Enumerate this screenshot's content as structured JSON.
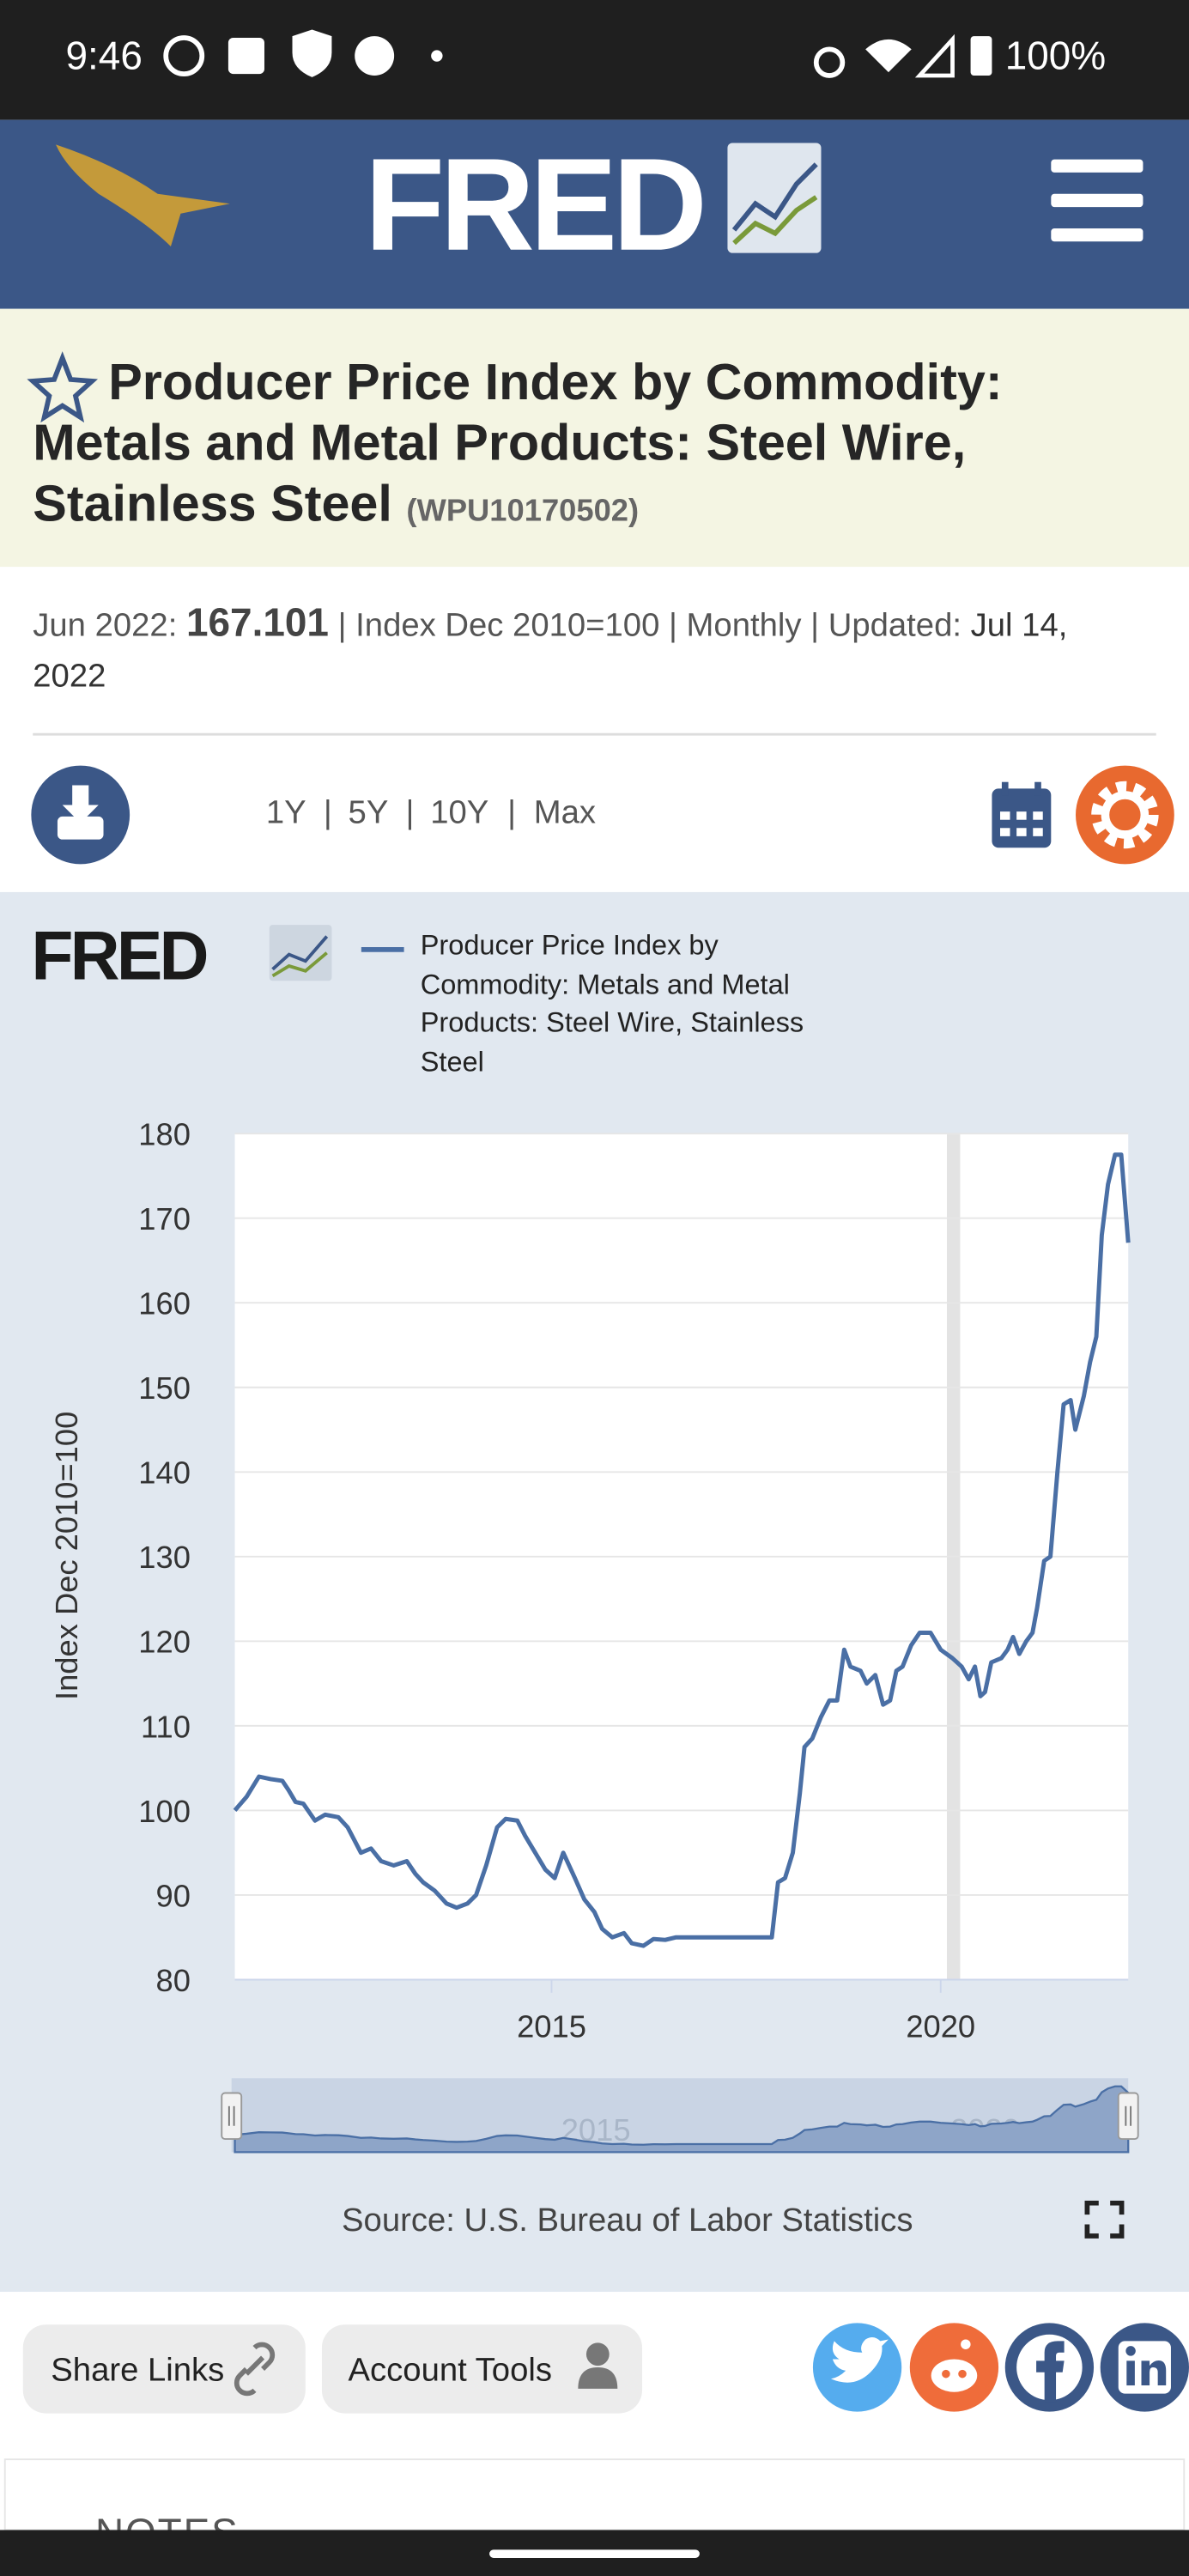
{
  "status_bar": {
    "time": "9:46",
    "battery": "100%"
  },
  "header": {
    "logo": "FRED"
  },
  "title": {
    "lines": [
      "Producer Price Index by Commodity:",
      "Metals and Metal Products: Steel Wire,",
      "Stainless Steel"
    ],
    "series_id": "(WPU10170502)"
  },
  "meta": {
    "date": "Jun 2022:",
    "value": "167.101",
    "details": "| Index Dec 2010=100 | Monthly | Updated:",
    "updated_line1": "Jul 14,",
    "updated_line2": "2022"
  },
  "range_buttons": [
    "1Y",
    "5Y",
    "10Y",
    "Max"
  ],
  "chart_data": {
    "type": "line",
    "logo": "FRED",
    "ylabel": "Index Dec 2010=100",
    "source": "Source: U.S. Bureau of Labor Statistics",
    "x": [
      2010.93,
      2011.08,
      2011.24,
      2011.39,
      2011.54,
      2011.62,
      2011.71,
      2011.81,
      2011.96,
      2012.09,
      2012.26,
      2012.38,
      2012.55,
      2012.68,
      2012.81,
      2012.97,
      2013.14,
      2013.25,
      2013.35,
      2013.5,
      2013.65,
      2013.78,
      2013.92,
      2014.03,
      2014.16,
      2014.3,
      2014.41,
      2014.56,
      2014.66,
      2014.79,
      2014.92,
      2015.04,
      2015.15,
      2015.3,
      2015.42,
      2015.55,
      2015.65,
      2015.78,
      2015.93,
      2016.03,
      2016.18,
      2016.31,
      2016.46,
      2016.6,
      2016.98,
      2017.41,
      2017.83,
      2017.91,
      2018.0,
      2018.1,
      2018.19,
      2018.25,
      2018.35,
      2018.46,
      2018.57,
      2018.67,
      2018.76,
      2018.84,
      2018.97,
      2019.05,
      2019.16,
      2019.26,
      2019.35,
      2019.43,
      2019.51,
      2019.62,
      2019.73,
      2019.87,
      2020.0,
      2020.15,
      2020.27,
      2020.36,
      2020.44,
      2020.51,
      2020.57,
      2020.65,
      2020.78,
      2020.86,
      2020.93,
      2021.01,
      2021.1,
      2021.18,
      2021.24,
      2021.33,
      2021.41,
      2021.5,
      2021.58,
      2021.67,
      2021.73,
      2021.84,
      2021.92,
      2022.0,
      2022.07,
      2022.15,
      2022.24,
      2022.32,
      2022.41
    ],
    "series": [
      {
        "name": "Producer Price Index by Commodity: Metals and Metal Products: Steel Wire, Stainless Steel",
        "color": "#4a6fa5",
        "values": [
          100,
          101.6,
          104,
          103.7,
          103.5,
          102.4,
          101,
          100.8,
          98.8,
          99.5,
          99.2,
          98,
          95,
          95.5,
          94,
          93.5,
          94,
          92.5,
          91.5,
          90.5,
          89,
          88.5,
          89,
          90,
          93.5,
          98,
          99,
          98.8,
          97,
          95,
          93,
          92,
          95,
          92,
          89.5,
          88,
          86,
          85,
          85.5,
          84.3,
          84,
          84.8,
          84.7,
          85,
          85,
          85,
          85,
          91.5,
          92,
          95,
          102,
          107.5,
          108.5,
          111,
          113,
          113,
          119,
          117,
          116.5,
          115,
          116,
          112.5,
          113,
          116.5,
          117,
          119.5,
          121,
          121,
          119,
          118,
          117,
          115.5,
          117,
          113.5,
          114,
          117.5,
          118,
          119,
          120.5,
          118.5,
          120,
          121,
          124,
          129.5,
          130,
          140,
          148,
          148.5,
          145,
          149,
          153,
          156,
          168,
          174,
          177.5,
          177.5,
          167.101
        ]
      }
    ],
    "recessions": [
      [
        2020.08,
        2020.25
      ]
    ],
    "xlim": [
      2010.93,
      2022.41
    ],
    "xticks": [
      2015,
      2020
    ],
    "ylim": [
      80,
      180
    ],
    "yticks": [
      80,
      90,
      100,
      110,
      120,
      130,
      140,
      150,
      160,
      170,
      180
    ],
    "grid": true
  },
  "buttons": {
    "share": "Share Links",
    "account": "Account Tools"
  },
  "notes": {
    "heading": "NOTES"
  }
}
